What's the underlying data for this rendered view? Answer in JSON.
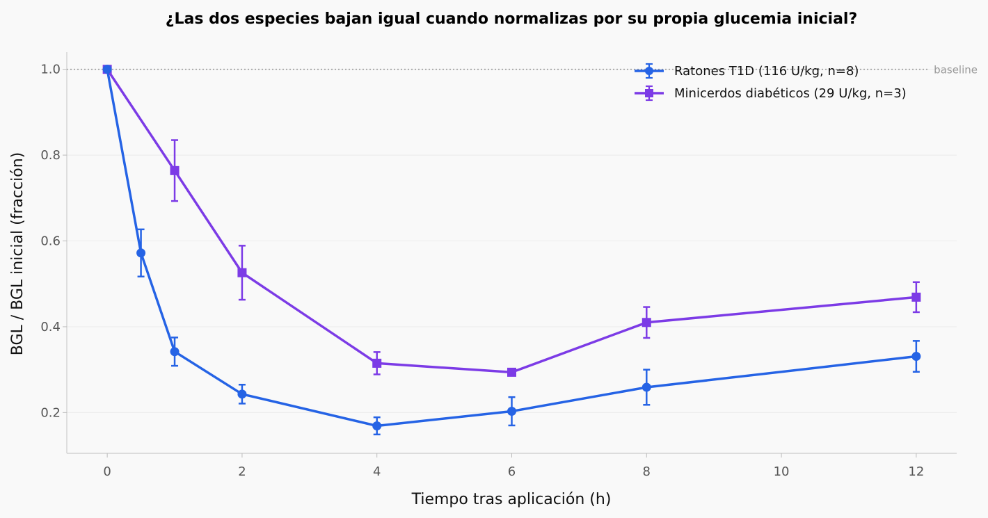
{
  "chart_data": {
    "type": "line",
    "title": "¿Las dos especies bajan igual cuando normalizas por su propia glucemia inicial?",
    "xlabel": "Tiempo tras aplicación (h)",
    "ylabel": "BGL / BGL inicial (fracción)",
    "xlim": [
      -0.6,
      12.6
    ],
    "ylim": [
      0.105,
      1.04
    ],
    "xticks": [
      0,
      2,
      4,
      6,
      8,
      10,
      12
    ],
    "xtick_labels": [
      "0",
      "2",
      "4",
      "6",
      "8",
      "10",
      "12"
    ],
    "yticks": [
      0.2,
      0.4,
      0.6,
      0.8,
      1.0
    ],
    "ytick_labels": [
      "0.2",
      "0.4",
      "0.6",
      "0.8",
      "1.0"
    ],
    "grid": "horizontal",
    "legend_position": "top-right",
    "reference_line": {
      "y": 1.0,
      "label": "baseline",
      "color": "#9a9a9a"
    },
    "series": [
      {
        "name": "Ratones T1D (116 U/kg, n=8)",
        "color": "#2563e5",
        "marker": "circle",
        "x": [
          0,
          0.5,
          1,
          2,
          4,
          6,
          8,
          12
        ],
        "y": [
          1.0,
          0.572,
          0.342,
          0.243,
          0.169,
          0.203,
          0.259,
          0.331
        ],
        "err": [
          0.0,
          0.055,
          0.033,
          0.022,
          0.02,
          0.033,
          0.041,
          0.036
        ]
      },
      {
        "name": "Minicerdos diabéticos (29 U/kg, n=3)",
        "color": "#7c3be6",
        "marker": "square",
        "x": [
          0,
          1,
          2,
          4,
          6,
          8,
          12
        ],
        "y": [
          1.0,
          0.764,
          0.526,
          0.315,
          0.294,
          0.41,
          0.469
        ],
        "err": [
          0.0,
          0.071,
          0.063,
          0.026,
          0.0,
          0.036,
          0.035
        ]
      }
    ]
  }
}
